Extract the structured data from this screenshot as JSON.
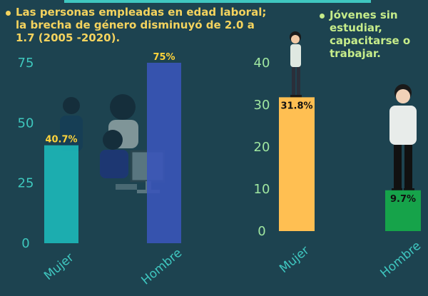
{
  "left_title": "Las personas empleadas en edad laboral; la brecha de género disminuyó de 2.0 a 1.7 (2005 -2020).",
  "right_title": "Jóvenes sin estudiar, capacitarse o trabajar.",
  "colors": {
    "background": "#1d4350",
    "left_tick": "#3ec7bd",
    "right_tick": "#9fe6a0",
    "mujer_left": "#1cbfbf",
    "hombre_left": "#3a55b8",
    "mujer_right": "#ffbf52",
    "hombre_right": "#16a34a",
    "left_label": "#ffd43b",
    "category_label": "#3fc7c0"
  },
  "icons": [
    "office-workers-illustration",
    "woman-standing-illustration",
    "man-standing-illustration"
  ],
  "chart_data": [
    {
      "type": "bar",
      "title": "Las personas empleadas en edad laboral; la brecha de género disminuyó de 2.0 a 1.7 (2005 -2020).",
      "categories": [
        "Mujer",
        "Hombre"
      ],
      "values": [
        40.7,
        75
      ],
      "labels": [
        "40.7%",
        "75%"
      ],
      "ylim": [
        0,
        75
      ],
      "yticks": [
        0,
        25,
        50,
        75
      ],
      "grid": false
    },
    {
      "type": "bar",
      "title": "Jóvenes sin estudiar, capacitarse o trabajar.",
      "categories": [
        "Mujer",
        "Hombre"
      ],
      "values": [
        31.8,
        9.7
      ],
      "labels": [
        "31.8%",
        "9.7%"
      ],
      "ylim": [
        0,
        40
      ],
      "yticks": [
        0,
        10,
        20,
        30,
        40
      ],
      "grid": false
    }
  ]
}
